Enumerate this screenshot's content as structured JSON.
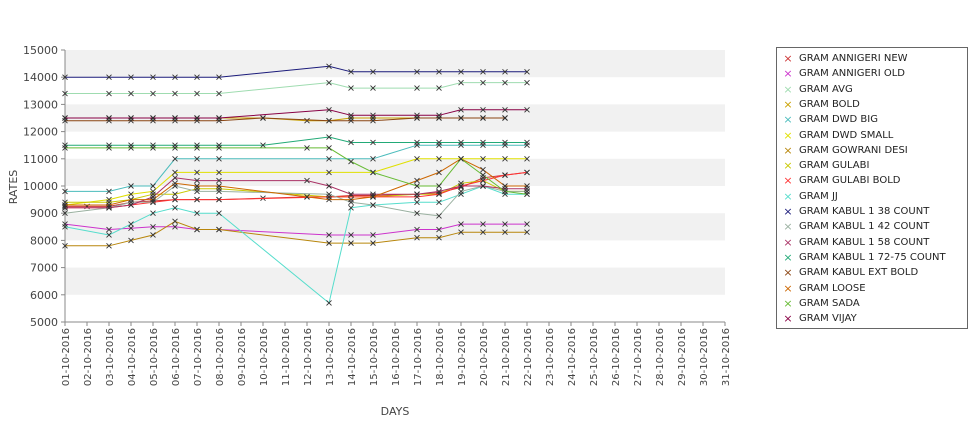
{
  "chart_data": {
    "type": "line",
    "xlabel": "DAYS",
    "ylabel": "RATES",
    "ylim": [
      5000,
      15000
    ],
    "yticks": [
      5000,
      6000,
      7000,
      8000,
      9000,
      10000,
      11000,
      12000,
      13000,
      14000,
      15000
    ],
    "grid": "alternating horizontal bands",
    "legend_position": "right",
    "x": [
      "01-10-2016",
      "02-10-2016",
      "03-10-2016",
      "04-10-2016",
      "05-10-2016",
      "06-10-2016",
      "07-10-2016",
      "08-10-2016",
      "09-10-2016",
      "10-10-2016",
      "11-10-2016",
      "12-10-2016",
      "13-10-2016",
      "14-10-2016",
      "15-10-2016",
      "16-10-2016",
      "17-10-2016",
      "18-10-2016",
      "19-10-2016",
      "20-10-2016",
      "21-10-2016",
      "22-10-2016",
      "23-10-2016",
      "24-10-2016",
      "25-10-2016",
      "26-10-2016",
      "27-10-2016",
      "28-10-2016",
      "29-10-2016",
      "30-10-2016",
      "31-10-2016"
    ],
    "series": [
      {
        "name": "GRAM ANNIGERI NEW",
        "color": "#cc3333",
        "points": [
          [
            0,
            9250
          ],
          [
            1,
            9250
          ],
          [
            2,
            9250
          ],
          [
            3,
            9400
          ],
          [
            4,
            9450
          ],
          [
            5,
            9500
          ],
          [
            6,
            9500
          ],
          [
            7,
            9500
          ],
          [
            9,
            9550
          ],
          [
            11,
            9600
          ],
          [
            12,
            9600
          ],
          [
            13,
            9650
          ],
          [
            14,
            9650
          ],
          [
            16,
            9700
          ],
          [
            17,
            9750
          ],
          [
            18,
            9950
          ],
          [
            19,
            10300
          ],
          [
            20,
            10400
          ],
          [
            21,
            10500
          ]
        ]
      },
      {
        "name": "GRAM ANNIGERI OLD",
        "color": "#cc33cc",
        "points": [
          [
            0,
            8600
          ],
          [
            2,
            8400
          ],
          [
            3,
            8450
          ],
          [
            4,
            8500
          ],
          [
            5,
            8500
          ],
          [
            6,
            8400
          ],
          [
            7,
            8400
          ],
          [
            12,
            8200
          ],
          [
            13,
            8200
          ],
          [
            14,
            8200
          ],
          [
            16,
            8400
          ],
          [
            17,
            8400
          ],
          [
            18,
            8600
          ],
          [
            19,
            8600
          ],
          [
            20,
            8600
          ],
          [
            21,
            8600
          ]
        ]
      },
      {
        "name": "GRAM AVG",
        "color": "#9fdcb0",
        "points": [
          [
            0,
            13400
          ],
          [
            2,
            13400
          ],
          [
            3,
            13400
          ],
          [
            4,
            13400
          ],
          [
            5,
            13400
          ],
          [
            6,
            13400
          ],
          [
            7,
            13400
          ],
          [
            12,
            13800
          ],
          [
            13,
            13600
          ],
          [
            14,
            13600
          ],
          [
            16,
            13600
          ],
          [
            17,
            13600
          ],
          [
            18,
            13800
          ],
          [
            19,
            13800
          ],
          [
            20,
            13800
          ],
          [
            21,
            13800
          ]
        ]
      },
      {
        "name": "GRAM BOLD",
        "color": "#c9a000",
        "points": [
          [
            0,
            12500
          ],
          [
            2,
            12500
          ],
          [
            3,
            12500
          ],
          [
            4,
            12500
          ],
          [
            5,
            12500
          ],
          [
            6,
            12500
          ],
          [
            7,
            12500
          ],
          [
            9,
            12500
          ],
          [
            11,
            12400
          ],
          [
            12,
            12400
          ],
          [
            13,
            12500
          ],
          [
            14,
            12500
          ],
          [
            16,
            12500
          ],
          [
            17,
            12500
          ],
          [
            18,
            12500
          ],
          [
            19,
            12500
          ],
          [
            20,
            12500
          ]
        ]
      },
      {
        "name": "GRAM DWD BIG",
        "color": "#4bbcbc",
        "points": [
          [
            0,
            9800
          ],
          [
            2,
            9800
          ],
          [
            3,
            10000
          ],
          [
            4,
            10000
          ],
          [
            5,
            11000
          ],
          [
            6,
            11000
          ],
          [
            7,
            11000
          ],
          [
            12,
            11000
          ],
          [
            14,
            11000
          ],
          [
            16,
            11500
          ],
          [
            17,
            11500
          ],
          [
            18,
            11500
          ],
          [
            19,
            11500
          ],
          [
            20,
            11500
          ],
          [
            21,
            11500
          ]
        ]
      },
      {
        "name": "GRAM DWD SMALL",
        "color": "#e0e000",
        "points": [
          [
            0,
            9300
          ],
          [
            2,
            9500
          ],
          [
            3,
            9700
          ],
          [
            4,
            9800
          ],
          [
            5,
            10500
          ],
          [
            6,
            10500
          ],
          [
            7,
            10500
          ],
          [
            12,
            10500
          ],
          [
            14,
            10500
          ],
          [
            16,
            11000
          ],
          [
            17,
            11000
          ],
          [
            18,
            11000
          ],
          [
            19,
            11000
          ],
          [
            20,
            11000
          ],
          [
            21,
            11000
          ]
        ]
      },
      {
        "name": "GRAM GOWRANI DESI",
        "color": "#b8860b",
        "points": [
          [
            0,
            7800
          ],
          [
            2,
            7800
          ],
          [
            3,
            8000
          ],
          [
            4,
            8200
          ],
          [
            5,
            8700
          ],
          [
            6,
            8400
          ],
          [
            7,
            8400
          ],
          [
            12,
            7900
          ],
          [
            13,
            7900
          ],
          [
            14,
            7900
          ],
          [
            16,
            8100
          ],
          [
            17,
            8100
          ],
          [
            18,
            8300
          ],
          [
            19,
            8300
          ],
          [
            20,
            8300
          ],
          [
            21,
            8300
          ]
        ]
      },
      {
        "name": "GRAM GULABI",
        "color": "#c8c800",
        "points": [
          [
            0,
            9400
          ],
          [
            2,
            9400
          ],
          [
            3,
            9500
          ],
          [
            4,
            9700
          ],
          [
            5,
            9700
          ],
          [
            6,
            9900
          ],
          [
            7,
            9900
          ],
          [
            12,
            9600
          ],
          [
            14,
            9600
          ],
          [
            16,
            9700
          ],
          [
            17,
            9700
          ],
          [
            18,
            10100
          ],
          [
            19,
            10200
          ],
          [
            20,
            9800
          ],
          [
            21,
            9800
          ]
        ]
      },
      {
        "name": "GRAM GULABI BOLD",
        "color": "#ff3333",
        "points": [
          [
            0,
            9200
          ],
          [
            2,
            9200
          ],
          [
            3,
            9300
          ],
          [
            4,
            9400
          ],
          [
            5,
            9500
          ],
          [
            6,
            9500
          ],
          [
            7,
            9500
          ],
          [
            12,
            9600
          ],
          [
            14,
            9600
          ],
          [
            16,
            9600
          ],
          [
            17,
            9700
          ],
          [
            18,
            10000
          ],
          [
            19,
            10200
          ],
          [
            20,
            10400
          ],
          [
            21,
            10500
          ]
        ]
      },
      {
        "name": "GRAM JJ",
        "color": "#55ddcc",
        "points": [
          [
            0,
            8500
          ],
          [
            2,
            8200
          ],
          [
            3,
            8600
          ],
          [
            4,
            9000
          ],
          [
            5,
            9200
          ],
          [
            6,
            9000
          ],
          [
            7,
            9000
          ],
          [
            12,
            5700
          ],
          [
            13,
            9200
          ],
          [
            14,
            9300
          ],
          [
            16,
            9400
          ],
          [
            17,
            9400
          ],
          [
            18,
            9700
          ],
          [
            19,
            10000
          ],
          [
            20,
            9700
          ],
          [
            21,
            9700
          ]
        ]
      },
      {
        "name": "GRAM KABUL 1 38 COUNT",
        "color": "#1a1a7a",
        "points": [
          [
            0,
            14000
          ],
          [
            2,
            14000
          ],
          [
            3,
            14000
          ],
          [
            4,
            14000
          ],
          [
            5,
            14000
          ],
          [
            6,
            14000
          ],
          [
            7,
            14000
          ],
          [
            12,
            14400
          ],
          [
            13,
            14200
          ],
          [
            14,
            14200
          ],
          [
            16,
            14200
          ],
          [
            17,
            14200
          ],
          [
            18,
            14200
          ],
          [
            19,
            14200
          ],
          [
            20,
            14200
          ],
          [
            21,
            14200
          ]
        ]
      },
      {
        "name": "GRAM KABUL 1 42 COUNT",
        "color": "#9ab0a0",
        "points": [
          [
            0,
            9000
          ],
          [
            2,
            9200
          ],
          [
            3,
            9400
          ],
          [
            4,
            9400
          ],
          [
            5,
            10000
          ],
          [
            6,
            9800
          ],
          [
            7,
            9800
          ],
          [
            12,
            9700
          ],
          [
            13,
            9400
          ],
          [
            14,
            9300
          ],
          [
            16,
            9000
          ],
          [
            17,
            8900
          ],
          [
            18,
            9800
          ],
          [
            19,
            10000
          ],
          [
            20,
            9800
          ],
          [
            21,
            9800
          ]
        ]
      },
      {
        "name": "GRAM KABUL 1 58 COUNT",
        "color": "#aa3366",
        "points": [
          [
            0,
            9200
          ],
          [
            2,
            9200
          ],
          [
            3,
            9300
          ],
          [
            4,
            9600
          ],
          [
            5,
            10300
          ],
          [
            6,
            10200
          ],
          [
            7,
            10200
          ],
          [
            11,
            10200
          ],
          [
            12,
            10000
          ],
          [
            13,
            9700
          ],
          [
            14,
            9700
          ],
          [
            16,
            9700
          ],
          [
            17,
            9800
          ],
          [
            18,
            10000
          ],
          [
            19,
            10000
          ],
          [
            20,
            9900
          ],
          [
            21,
            9900
          ]
        ]
      },
      {
        "name": "GRAM KABUL 1 72-75 COUNT",
        "color": "#22aa77",
        "points": [
          [
            0,
            11500
          ],
          [
            2,
            11500
          ],
          [
            3,
            11500
          ],
          [
            4,
            11500
          ],
          [
            5,
            11500
          ],
          [
            6,
            11500
          ],
          [
            7,
            11500
          ],
          [
            9,
            11500
          ],
          [
            12,
            11800
          ],
          [
            13,
            11600
          ],
          [
            14,
            11600
          ],
          [
            16,
            11600
          ],
          [
            17,
            11600
          ],
          [
            18,
            11600
          ],
          [
            19,
            11600
          ],
          [
            20,
            11600
          ],
          [
            21,
            11600
          ]
        ]
      },
      {
        "name": "GRAM KABUL EXT BOLD",
        "color": "#8b4513",
        "points": [
          [
            0,
            12400
          ],
          [
            2,
            12400
          ],
          [
            3,
            12400
          ],
          [
            4,
            12400
          ],
          [
            5,
            12400
          ],
          [
            6,
            12400
          ],
          [
            7,
            12400
          ],
          [
            9,
            12500
          ],
          [
            12,
            12400
          ],
          [
            13,
            12400
          ],
          [
            14,
            12400
          ],
          [
            16,
            12500
          ],
          [
            17,
            12500
          ],
          [
            18,
            12500
          ],
          [
            19,
            12500
          ],
          [
            20,
            12500
          ]
        ]
      },
      {
        "name": "GRAM LOOSE",
        "color": "#cc6600",
        "points": [
          [
            0,
            9300
          ],
          [
            2,
            9300
          ],
          [
            3,
            9500
          ],
          [
            4,
            9500
          ],
          [
            5,
            10100
          ],
          [
            6,
            10000
          ],
          [
            7,
            10000
          ],
          [
            11,
            9600
          ],
          [
            12,
            9500
          ],
          [
            13,
            9500
          ],
          [
            14,
            9600
          ],
          [
            16,
            10200
          ],
          [
            17,
            10500
          ],
          [
            18,
            11000
          ],
          [
            19,
            10600
          ],
          [
            20,
            10000
          ],
          [
            21,
            10000
          ]
        ]
      },
      {
        "name": "GRAM SADA",
        "color": "#66bb33",
        "points": [
          [
            0,
            11400
          ],
          [
            2,
            11400
          ],
          [
            3,
            11400
          ],
          [
            4,
            11400
          ],
          [
            5,
            11400
          ],
          [
            6,
            11400
          ],
          [
            7,
            11400
          ],
          [
            11,
            11400
          ],
          [
            12,
            11400
          ],
          [
            13,
            10900
          ],
          [
            14,
            10500
          ],
          [
            16,
            10000
          ],
          [
            17,
            10000
          ],
          [
            18,
            11000
          ],
          [
            19,
            10400
          ],
          [
            20,
            9800
          ],
          [
            21,
            9700
          ]
        ]
      },
      {
        "name": "GRAM VIJAY",
        "color": "#880044",
        "points": [
          [
            0,
            12500
          ],
          [
            2,
            12500
          ],
          [
            3,
            12500
          ],
          [
            4,
            12500
          ],
          [
            5,
            12500
          ],
          [
            6,
            12500
          ],
          [
            7,
            12500
          ],
          [
            12,
            12800
          ],
          [
            13,
            12600
          ],
          [
            14,
            12600
          ],
          [
            16,
            12600
          ],
          [
            17,
            12600
          ],
          [
            18,
            12800
          ],
          [
            19,
            12800
          ],
          [
            20,
            12800
          ],
          [
            21,
            12800
          ]
        ]
      }
    ]
  }
}
